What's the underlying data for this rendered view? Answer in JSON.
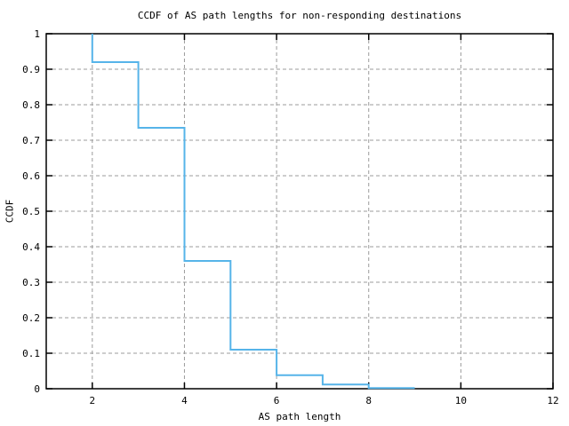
{
  "chart_data": {
    "type": "line",
    "subtype": "ccdf-step",
    "title": "CCDF of AS path lengths for non-responding destinations",
    "xlabel": "AS path length",
    "ylabel": "CCDF",
    "xlim": [
      1,
      12
    ],
    "ylim": [
      0,
      1
    ],
    "grid": true,
    "legend": "none",
    "colors": {
      "line": "#56b4e9",
      "grid": "#9b9b9b",
      "border": "#000000",
      "background": "#ffffff"
    },
    "xticks": {
      "values": [
        2,
        4,
        6,
        8,
        10,
        12
      ],
      "labels": [
        "2",
        "4",
        "6",
        "8",
        "10",
        "12"
      ]
    },
    "yticks": {
      "values": [
        0,
        0.1,
        0.2,
        0.3,
        0.4,
        0.5,
        0.6,
        0.7,
        0.8,
        0.9,
        1
      ],
      "labels": [
        "0",
        "0.1",
        "0.2",
        "0.3",
        "0.4",
        "0.5",
        "0.6",
        "0.7",
        "0.8",
        "0.9",
        "1"
      ]
    },
    "series": [
      {
        "name": "ccdf",
        "points": [
          [
            2,
            1.0
          ],
          [
            2,
            0.92
          ],
          [
            3,
            0.92
          ],
          [
            3,
            0.735
          ],
          [
            4,
            0.735
          ],
          [
            4,
            0.36
          ],
          [
            5,
            0.36
          ],
          [
            5,
            0.11
          ],
          [
            6,
            0.11
          ],
          [
            6,
            0.038
          ],
          [
            7,
            0.038
          ],
          [
            7,
            0.012
          ],
          [
            8,
            0.012
          ],
          [
            8,
            0.002
          ],
          [
            9,
            0.002
          ]
        ]
      }
    ]
  },
  "plateau_values_by_path_length": {
    "2": 0.92,
    "3": 0.735,
    "4": 0.36,
    "5": 0.11,
    "6": 0.038,
    "7": 0.012,
    "8": 0.002
  }
}
